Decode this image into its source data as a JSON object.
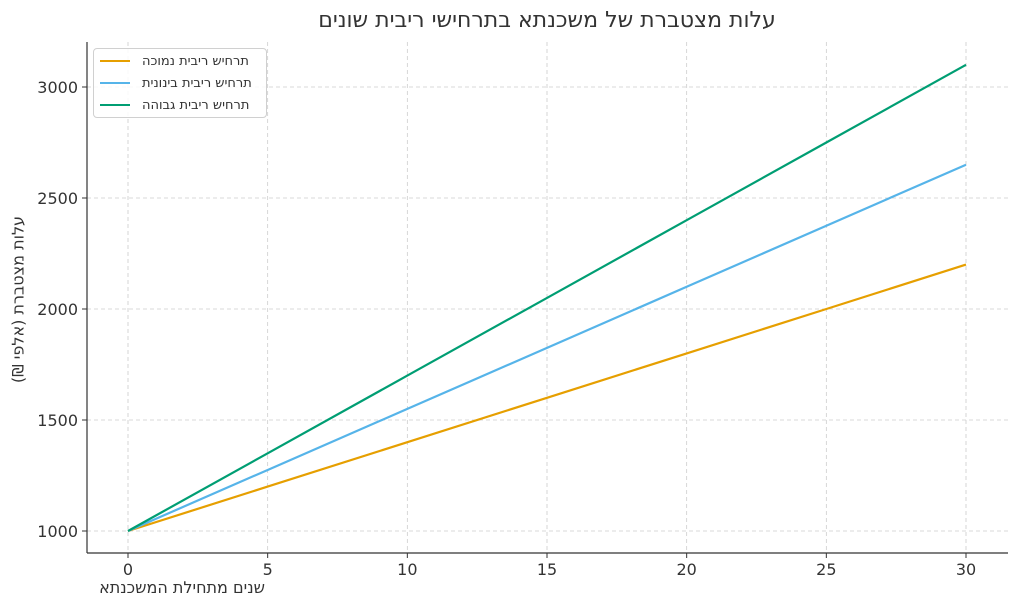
{
  "chart_data": {
    "type": "line",
    "title": "עלות מצטברת של משכנתא בתרחישי ריבית שונים",
    "title_display": "םינוש תיביר ישיחרתב אתנכשמ לש תרבטצמ תולע",
    "xlabel": "שנים מתחילת המשכנתא",
    "xlabel_display": "אתנכשמה תליחתמ םינש",
    "ylabel": "עלות מצטברת (אלפי ₪)",
    "ylabel_display": "(₪ יפלא) תרבטצמ תולע",
    "x": [
      0,
      5,
      10,
      15,
      20,
      25,
      30
    ],
    "xlim": [
      -1.5,
      31.5
    ],
    "ylim": [
      900,
      3200
    ],
    "xticks": [
      "0",
      "5",
      "10",
      "15",
      "20",
      "25",
      "30"
    ],
    "yticks": [
      "1000",
      "1500",
      "2000",
      "2500",
      "3000"
    ],
    "grid": true,
    "legend_position": "upper left",
    "series": [
      {
        "name": "תרחיש ריבית נמוכה",
        "name_display": "הכומנ תיביר שיחרת",
        "color": "#E69F00",
        "values": [
          1000,
          1200,
          1400,
          1600,
          1800,
          2000,
          2200
        ]
      },
      {
        "name": "תרחיש ריבית בינונית",
        "name_display": "תינוניב תיביר שיחרת",
        "color": "#56B4E9",
        "values": [
          1000,
          1275,
          1550,
          1825,
          2100,
          2375,
          2650
        ]
      },
      {
        "name": "תרחיש ריבית גבוהה",
        "name_display": "ההובג תיביר שיחרת",
        "color": "#009E73",
        "values": [
          1000,
          1350,
          1700,
          2050,
          2400,
          2750,
          3100
        ]
      }
    ]
  }
}
